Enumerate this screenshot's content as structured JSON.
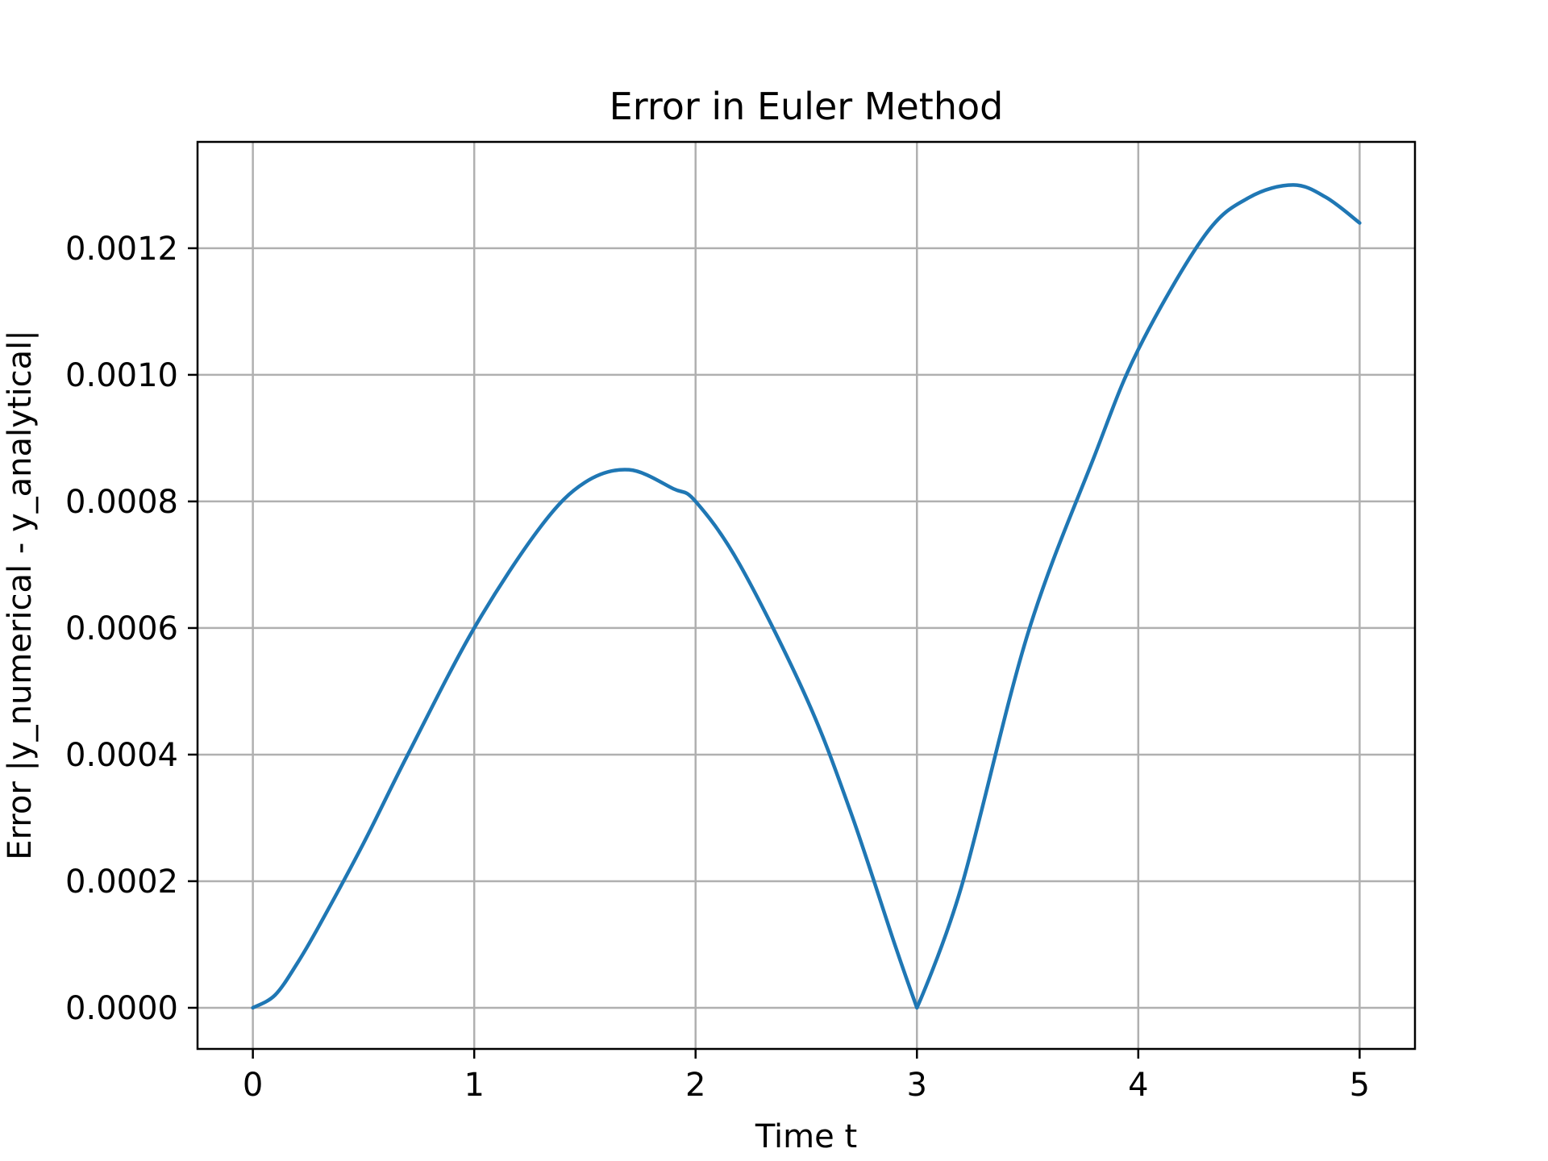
{
  "chart_data": {
    "type": "line",
    "title": "Error in Euler Method",
    "xlabel": "Time t",
    "ylabel": "Error |y_numerical - y_analytical|",
    "xlim": [
      -0.25,
      5.25
    ],
    "ylim": [
      -6.5e-05,
      0.001368
    ],
    "xticks": [
      0,
      1,
      2,
      3,
      4,
      5
    ],
    "xtick_labels": [
      "0",
      "1",
      "2",
      "3",
      "4",
      "5"
    ],
    "yticks": [
      0,
      0.0002,
      0.0004,
      0.0006,
      0.0008,
      0.001,
      0.0012
    ],
    "ytick_labels": [
      "0.0000",
      "0.0002",
      "0.0004",
      "0.0006",
      "0.0008",
      "0.0010",
      "0.0012"
    ],
    "grid": true,
    "series": [
      {
        "color": "#1f77b4",
        "x": [
          0,
          0.1,
          0.2,
          0.3,
          0.5,
          0.7,
          1.0,
          1.3,
          1.5,
          1.7,
          1.9,
          2.0,
          2.2,
          2.5,
          2.7,
          2.9,
          3.0,
          3.2,
          3.5,
          3.8,
          4.0,
          4.3,
          4.5,
          4.7,
          4.85,
          5.0
        ],
        "y": [
          0,
          2e-05,
          7e-05,
          0.00013,
          0.00026,
          0.0004,
          0.0006,
          0.00076,
          0.00083,
          0.00085,
          0.00082,
          0.0008,
          0.0007,
          0.00049,
          0.00031,
          0.0001,
          0.0,
          0.00019,
          0.00059,
          0.00087,
          0.00104,
          0.00122,
          0.00128,
          0.0013,
          0.00128,
          0.00124
        ]
      }
    ]
  }
}
